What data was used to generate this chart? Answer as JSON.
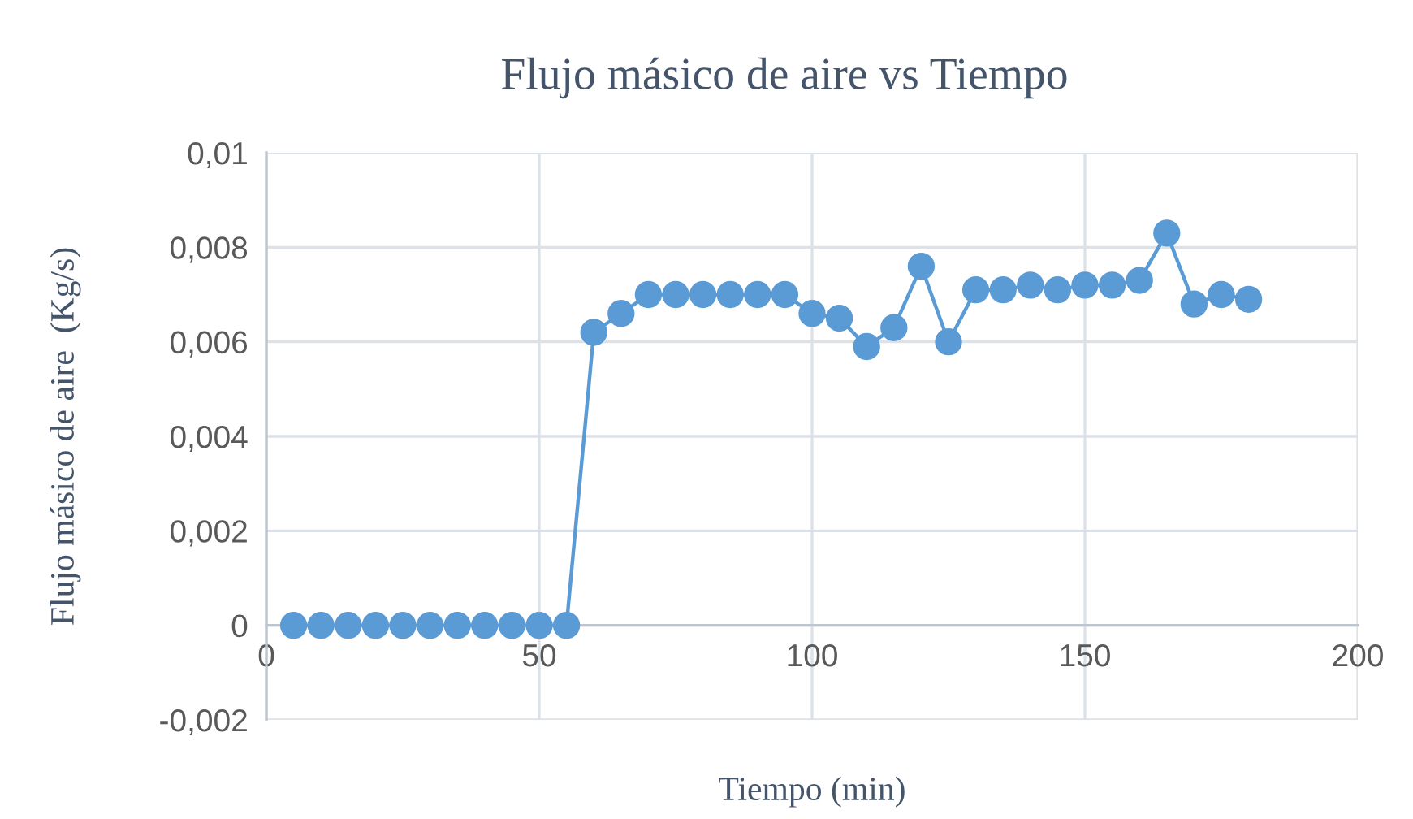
{
  "chart_data": {
    "type": "line",
    "title": "Flujo másico de aire vs Tiempo",
    "xlabel": "Tiempo (min)",
    "ylabel": "Flujo másico de aire  (Kg/s)",
    "x": [
      5,
      10,
      15,
      20,
      25,
      30,
      35,
      40,
      45,
      50,
      55,
      60,
      65,
      70,
      75,
      80,
      85,
      90,
      95,
      100,
      105,
      110,
      115,
      120,
      125,
      130,
      135,
      140,
      145,
      150,
      155,
      160,
      165,
      170,
      175,
      180
    ],
    "series": [
      {
        "color": "#5b9bd5",
        "values": [
          0,
          0,
          0,
          0,
          0,
          0,
          0,
          0,
          0,
          0,
          0,
          0.0062,
          0.0066,
          0.007,
          0.007,
          0.007,
          0.007,
          0.007,
          0.007,
          0.0066,
          0.0065,
          0.0059,
          0.0063,
          0.0076,
          0.006,
          0.0071,
          0.0071,
          0.0072,
          0.0071,
          0.0072,
          0.0072,
          0.0073,
          0.0083,
          0.0068,
          0.007,
          0.0069
        ]
      }
    ],
    "xlim": [
      0,
      200
    ],
    "xticks": [
      0,
      50,
      100,
      150,
      200
    ],
    "ylim": [
      -0.002,
      0.01
    ],
    "yticks": [
      {
        "value": -0.002,
        "label": "-0,002"
      },
      {
        "value": 0,
        "label": "0"
      },
      {
        "value": 0.002,
        "label": "0,002"
      },
      {
        "value": 0.004,
        "label": "0,004"
      },
      {
        "value": 0.006,
        "label": "0,006"
      },
      {
        "value": 0.008,
        "label": "0,008"
      },
      {
        "value": 0.01,
        "label": "0,01"
      }
    ],
    "grid": true,
    "marker": "circle",
    "line_style": "solid"
  }
}
